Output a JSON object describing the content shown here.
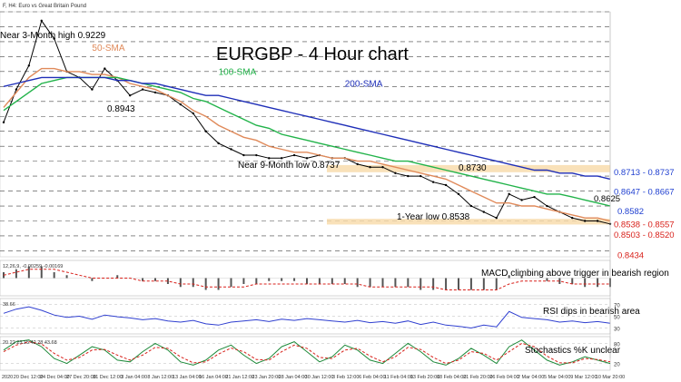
{
  "window": {
    "header": "F, H4:  Euro vs Great Britain Pound"
  },
  "chart_data": {
    "type": "line",
    "title": "EURGBP - 4 Hour chart",
    "xlabels": [
      "2020",
      "20 Dec 12:00",
      "24 Dec 04:00",
      "27 Dec 20:00",
      "31 Dec 12:00",
      "3 Jan 04:00",
      "8 Jan 12:00",
      "13 Jan 04:00",
      "16 Jan 04:00",
      "21 Jan 12:00",
      "23 Jan 20:00",
      "28 Jan 04:00",
      "30 Jan 12:00",
      "3 Feb 12:00",
      "6 Feb 04:00",
      "11 Feb 04:00",
      "13 Feb 20:00",
      "18 Feb 04:00",
      "21 Feb 20:00",
      "26 Feb 04:00",
      "2 Mar 04:00",
      "5 Mar 04:00",
      "9 Mar 12:00",
      "10 Mar 20:00"
    ],
    "ylim": [
      0.843,
      0.925
    ],
    "series": [
      {
        "name": "price",
        "color": "#000000",
        "values": [
          0.888,
          0.899,
          0.907,
          0.922,
          0.916,
          0.905,
          0.903,
          0.899,
          0.906,
          0.902,
          0.897,
          0.899,
          0.898,
          0.897,
          0.894,
          0.891,
          0.885,
          0.881,
          0.879,
          0.877,
          0.877,
          0.876,
          0.876,
          0.877,
          0.876,
          0.877,
          0.876,
          0.876,
          0.874,
          0.873,
          0.873,
          0.871,
          0.87,
          0.87,
          0.868,
          0.867,
          0.864,
          0.86,
          0.858,
          0.856,
          0.864,
          0.862,
          0.863,
          0.86,
          0.858,
          0.856,
          0.855,
          0.855,
          0.854
        ]
      },
      {
        "name": "50-SMA",
        "color": "#e08a5a",
        "values": [
          0.893,
          0.898,
          0.903,
          0.906,
          0.906,
          0.905,
          0.905,
          0.904,
          0.904,
          0.903,
          0.901,
          0.9,
          0.899,
          0.897,
          0.895,
          0.892,
          0.89,
          0.887,
          0.885,
          0.883,
          0.882,
          0.88,
          0.879,
          0.878,
          0.878,
          0.877,
          0.876,
          0.876,
          0.875,
          0.875,
          0.874,
          0.873,
          0.872,
          0.871,
          0.87,
          0.869,
          0.867,
          0.865,
          0.863,
          0.861,
          0.861,
          0.86,
          0.86,
          0.859,
          0.858,
          0.857,
          0.856,
          0.856,
          0.855
        ]
      },
      {
        "name": "100-SMA",
        "color": "#22b34a",
        "values": [
          0.892,
          0.895,
          0.898,
          0.901,
          0.902,
          0.903,
          0.903,
          0.903,
          0.903,
          0.903,
          0.902,
          0.901,
          0.9,
          0.899,
          0.898,
          0.896,
          0.895,
          0.893,
          0.891,
          0.889,
          0.887,
          0.886,
          0.884,
          0.883,
          0.882,
          0.881,
          0.88,
          0.879,
          0.878,
          0.877,
          0.876,
          0.875,
          0.875,
          0.874,
          0.873,
          0.872,
          0.871,
          0.87,
          0.869,
          0.868,
          0.867,
          0.866,
          0.865,
          0.864,
          0.864,
          0.863,
          0.862,
          0.861,
          0.86
        ]
      },
      {
        "name": "200-SMA",
        "color": "#1f2fb8",
        "values": [
          0.9,
          0.901,
          0.902,
          0.903,
          0.903,
          0.903,
          0.903,
          0.903,
          0.903,
          0.902,
          0.902,
          0.901,
          0.901,
          0.9,
          0.899,
          0.898,
          0.897,
          0.897,
          0.896,
          0.895,
          0.894,
          0.893,
          0.892,
          0.891,
          0.89,
          0.889,
          0.888,
          0.887,
          0.886,
          0.885,
          0.884,
          0.883,
          0.882,
          0.881,
          0.88,
          0.879,
          0.878,
          0.877,
          0.876,
          0.875,
          0.874,
          0.873,
          0.872,
          0.872,
          0.871,
          0.871,
          0.87,
          0.87,
          0.869
        ]
      }
    ],
    "annotations": [
      {
        "text": "Near 3-Month high 0.9229",
        "x": 3,
        "y": 0.9229
      },
      {
        "text": "50-SMA",
        "x": 7,
        "y": 0.911
      },
      {
        "text": "100-SMA",
        "x": 17,
        "y": 0.903
      },
      {
        "text": "200-SMA",
        "x": 27,
        "y": 0.899
      },
      {
        "text": "0.8943",
        "x": 11,
        "y": 0.8943
      },
      {
        "text": "Near 9-Month low 0.8737",
        "x": 25,
        "y": 0.8737
      },
      {
        "text": "0.8730",
        "x": 47,
        "y": 0.873
      },
      {
        "text": "1-Year low 0.8538",
        "x": 39,
        "y": 0.8538
      }
    ],
    "levels": [
      {
        "label": "0.8713 - 0.8737",
        "low": 0.8713,
        "high": 0.8737,
        "color": "#1f3fd0",
        "zone": true
      },
      {
        "label": "0.8647 - 0.8667",
        "low": 0.8647,
        "high": 0.8667,
        "color": "#1f3fd0",
        "zone": false
      },
      {
        "label": "0.8625",
        "low": 0.8625,
        "high": 0.8625,
        "color": "#000000",
        "zone": false
      },
      {
        "label": "0.8582",
        "low": 0.8582,
        "high": 0.8582,
        "color": "#1f3fd0",
        "zone": false
      },
      {
        "label": "0.8538 - 0.8557",
        "low": 0.8538,
        "high": 0.8557,
        "color": "#d8211b",
        "zone": true
      },
      {
        "label": "0.8503 - 0.8520",
        "low": 0.8503,
        "high": 0.852,
        "color": "#d8211b",
        "zone": false
      },
      {
        "label": "0.8434",
        "low": 0.8434,
        "high": 0.8434,
        "color": "#d8211b",
        "zone": false
      }
    ],
    "panels": [
      {
        "name": "macd",
        "header": "12,26,9, -0.00259 -0.00169",
        "caption": "MACD climbing above trigger in bearish region",
        "ylim": [
          -0.006,
          0.006
        ],
        "histogram": [
          0.002,
          0.003,
          0.004,
          0.004,
          0.002,
          0.001,
          0.0,
          -0.001,
          0.0,
          0.001,
          0.0,
          -0.001,
          -0.001,
          -0.002,
          -0.003,
          -0.003,
          -0.004,
          -0.004,
          -0.003,
          -0.002,
          -0.002,
          -0.001,
          -0.001,
          -0.001,
          -0.002,
          -0.002,
          -0.002,
          -0.002,
          -0.003,
          -0.003,
          -0.003,
          -0.003,
          -0.003,
          -0.004,
          -0.004,
          -0.004,
          -0.004,
          -0.004,
          -0.004,
          -0.004,
          0.001,
          0.001,
          0.0,
          -0.001,
          -0.002,
          -0.002,
          -0.003,
          -0.003,
          -0.003
        ],
        "signal": [
          0.001,
          0.002,
          0.003,
          0.003,
          0.003,
          0.002,
          0.001,
          0.0,
          0.0,
          0.0,
          0.0,
          -0.001,
          -0.001,
          -0.001,
          -0.002,
          -0.002,
          -0.003,
          -0.003,
          -0.003,
          -0.003,
          -0.002,
          -0.002,
          -0.002,
          -0.002,
          -0.002,
          -0.002,
          -0.002,
          -0.002,
          -0.002,
          -0.003,
          -0.003,
          -0.003,
          -0.003,
          -0.003,
          -0.003,
          -0.004,
          -0.004,
          -0.004,
          -0.004,
          -0.004,
          -0.002,
          -0.001,
          -0.001,
          -0.001,
          -0.001,
          -0.002,
          -0.002,
          -0.002,
          -0.002
        ]
      },
      {
        "name": "rsi",
        "header": "38.66",
        "caption": "RSI dips in bearish area",
        "ylim": [
          20,
          80
        ],
        "ticks": [
          70,
          50,
          30
        ],
        "values": [
          55,
          62,
          66,
          60,
          52,
          48,
          50,
          45,
          52,
          49,
          47,
          44,
          46,
          42,
          40,
          43,
          37,
          35,
          40,
          42,
          44,
          41,
          45,
          43,
          46,
          44,
          42,
          40,
          43,
          39,
          41,
          38,
          42,
          36,
          40,
          35,
          33,
          30,
          35,
          32,
          58,
          48,
          46,
          44,
          40,
          42,
          39,
          41,
          38
        ]
      },
      {
        "name": "stochastics",
        "header": "20.22 23.15 42.28 43.68",
        "caption": "Stochastics %K unclear",
        "ylim": [
          0,
          100
        ],
        "ticks": [
          80,
          20
        ],
        "k": [
          60,
          85,
          90,
          70,
          35,
          20,
          45,
          70,
          60,
          30,
          25,
          55,
          80,
          60,
          25,
          15,
          30,
          60,
          75,
          45,
          20,
          35,
          70,
          85,
          55,
          25,
          40,
          75,
          60,
          30,
          20,
          50,
          80,
          55,
          25,
          15,
          35,
          65,
          45,
          20,
          70,
          90,
          60,
          30,
          15,
          25,
          40,
          30,
          20
        ],
        "d": [
          55,
          75,
          85,
          78,
          50,
          30,
          38,
          60,
          62,
          45,
          30,
          45,
          68,
          65,
          40,
          22,
          25,
          48,
          66,
          55,
          32,
          30,
          55,
          75,
          65,
          38,
          35,
          60,
          65,
          42,
          25,
          40,
          68,
          62,
          38,
          20,
          30,
          55,
          50,
          30,
          55,
          80,
          70,
          42,
          22,
          22,
          35,
          32,
          25
        ]
      }
    ]
  }
}
